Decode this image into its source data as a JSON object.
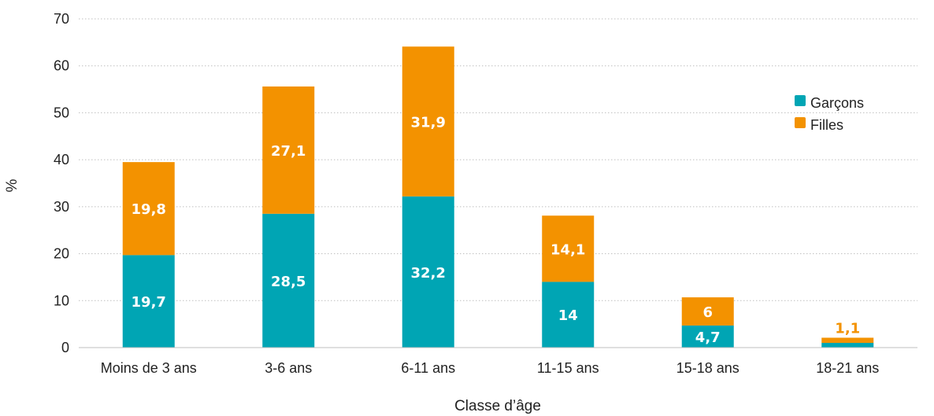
{
  "chart_data": {
    "type": "bar",
    "stacked": true,
    "title": "",
    "xlabel": "Classe d’âge",
    "ylabel": "%",
    "ylim": [
      0,
      70
    ],
    "yticks": [
      "0",
      "10",
      "20",
      "30",
      "40",
      "50",
      "60",
      "70"
    ],
    "categories": [
      "Moins de 3 ans",
      "3-6 ans",
      "6-11 ans",
      "11-15 ans",
      "15-18 ans",
      "18-21 ans"
    ],
    "series": [
      {
        "name": "Garçons",
        "color": "#00a5b4",
        "values": [
          19.7,
          28.5,
          32.2,
          14,
          4.7,
          1.0
        ],
        "labels": [
          "19,7",
          "28,5",
          "32,2",
          "14",
          "4,7",
          ""
        ]
      },
      {
        "name": "Filles",
        "color": "#f39200",
        "values": [
          19.8,
          27.1,
          31.9,
          14.1,
          6,
          1.1
        ],
        "labels": [
          "19,8",
          "27,1",
          "31,9",
          "14,1",
          "6",
          "1,1"
        ]
      }
    ],
    "grid": true,
    "legend": "top-right"
  }
}
